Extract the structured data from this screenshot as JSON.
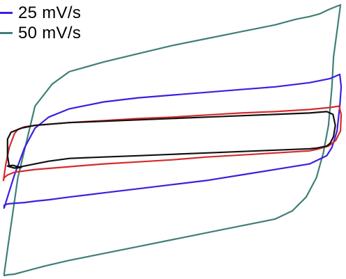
{
  "chart_data": {
    "type": "line",
    "title": "",
    "xlabel": "",
    "ylabel": "",
    "axes_visible": false,
    "grid": false,
    "legend_position": "top-left",
    "xlim": [
      0,
      100
    ],
    "ylim": [
      -100,
      100
    ],
    "legend": [
      {
        "name": "25 mV/s",
        "color": "#3a1fe0"
      },
      {
        "name": "50 mV/s",
        "color": "#3f7f78"
      }
    ],
    "series": [
      {
        "name": "",
        "color": "#3f7f78",
        "x": [
          1,
          2,
          5,
          10,
          15,
          20,
          30,
          40,
          50,
          60,
          70,
          80,
          86,
          90,
          93,
          95.5,
          97.5,
          99,
          98.2,
          97,
          96.5,
          95.5,
          94,
          92,
          89,
          85,
          80,
          70,
          60,
          50,
          40,
          30,
          20,
          13,
          10,
          7,
          4,
          2,
          1,
          1
        ],
        "y": [
          -98,
          -80,
          -28,
          24,
          40,
          49,
          56,
          62,
          68,
          73,
          78,
          83,
          87,
          89,
          91,
          94,
          96,
          97.5,
          82,
          60,
          38,
          10,
          -10,
          -28,
          -42,
          -52,
          -58,
          -63,
          -68,
          -73,
          -78,
          -83,
          -88,
          -92,
          -94,
          -96,
          -98,
          -98.5,
          -99,
          -98
        ]
      },
      {
        "name": "",
        "color": "#3a1fe0",
        "x": [
          1,
          2,
          4,
          7,
          10,
          14,
          20,
          30,
          40,
          50,
          60,
          70,
          80,
          90,
          96,
          98.8,
          99.2,
          98.8,
          98,
          96.5,
          95,
          90,
          80,
          70,
          60,
          50,
          40,
          30,
          20,
          14,
          10,
          7,
          4,
          2,
          1,
          1
        ],
        "y": [
          -50,
          -42,
          -26,
          -6,
          8,
          16,
          22,
          27,
          30,
          32,
          34,
          36,
          38,
          41,
          44,
          47,
          38,
          24,
          6,
          -6,
          -12,
          -18,
          -22,
          -26,
          -30,
          -33,
          -36,
          -39,
          -42,
          -44,
          -45,
          -46,
          -46.5,
          -47,
          -48,
          -50
        ]
      },
      {
        "name": "",
        "color": "#d62a2a",
        "x": [
          0.8,
          1.5,
          2.5,
          4,
          5,
          7,
          10,
          20,
          30,
          40,
          50,
          60,
          70,
          80,
          90,
          96,
          98.6,
          99.2,
          99,
          97.6,
          95.5,
          92,
          90,
          80,
          70,
          60,
          50,
          40,
          30,
          20,
          10,
          4,
          2,
          1,
          0.8
        ],
        "y": [
          -30,
          -18,
          -6,
          4,
          7,
          9,
          10,
          12,
          13.5,
          15,
          16,
          17.5,
          19,
          20,
          21.5,
          23,
          24,
          18,
          6,
          -1,
          -5,
          -7.5,
          -8.5,
          -10,
          -11.5,
          -13,
          -15,
          -16.5,
          -18,
          -20,
          -22,
          -24,
          -26,
          -28,
          -30
        ]
      },
      {
        "name": "",
        "color": "#111111",
        "x": [
          2,
          2,
          3,
          6,
          10,
          15,
          20,
          30,
          40,
          50,
          60,
          70,
          80,
          90,
          95,
          96.8,
          97.5,
          97,
          96,
          95,
          92,
          90,
          80,
          70,
          60,
          50,
          40,
          30,
          20,
          14,
          10,
          6,
          4,
          2.5,
          2,
          3.5,
          5,
          6,
          4,
          2.5,
          2
        ],
        "y": [
          -12,
          0,
          5,
          8,
          10,
          11,
          12,
          13,
          14,
          15,
          16,
          17,
          18,
          19,
          20,
          18,
          10,
          2,
          -3,
          -5,
          -6.5,
          -7,
          -8,
          -9,
          -10,
          -11,
          -12,
          -13,
          -14,
          -16,
          -18,
          -20,
          -21,
          -20,
          -19.5,
          -19,
          -20,
          -20.5,
          -21,
          -20,
          -12
        ]
      }
    ]
  }
}
